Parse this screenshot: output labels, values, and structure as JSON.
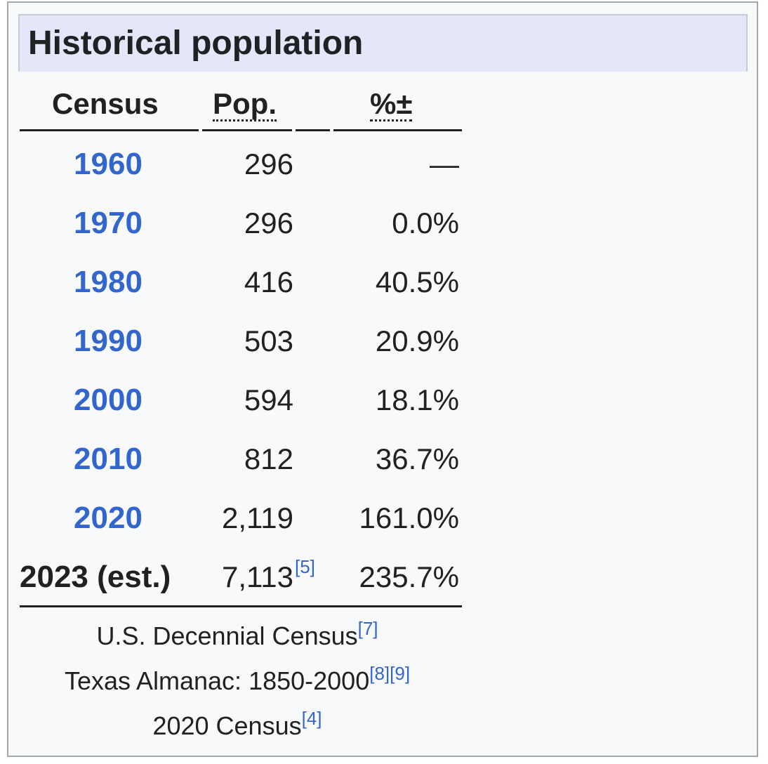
{
  "title": "Historical population",
  "columns": {
    "census": "Census",
    "pop": "Pop.",
    "change": "%±"
  },
  "rows": [
    {
      "census": "1960",
      "pop": "296",
      "change": "—"
    },
    {
      "census": "1970",
      "pop": "296",
      "change": "0.0%"
    },
    {
      "census": "1980",
      "pop": "416",
      "change": "40.5%"
    },
    {
      "census": "1990",
      "pop": "503",
      "change": "20.9%"
    },
    {
      "census": "2000",
      "pop": "594",
      "change": "18.1%"
    },
    {
      "census": "2010",
      "pop": "812",
      "change": "36.7%"
    },
    {
      "census": "2020",
      "pop": "2,119",
      "change": "161.0%"
    },
    {
      "census": "2023 (est.)",
      "pop": "7,113",
      "pop_ref": "[5]",
      "change": "235.7%"
    }
  ],
  "footer": [
    {
      "text": "U.S. Decennial Census",
      "refs": "[7]"
    },
    {
      "text": "Texas Almanac: 1850-2000",
      "refs": "[8][9]"
    },
    {
      "text": "2020 Census",
      "refs": "[4]"
    }
  ],
  "colors": {
    "link": "#3366cc",
    "title_bg": "#e6e6fa",
    "box_bg": "#f8f9fa",
    "border": "#a2a9b1"
  }
}
